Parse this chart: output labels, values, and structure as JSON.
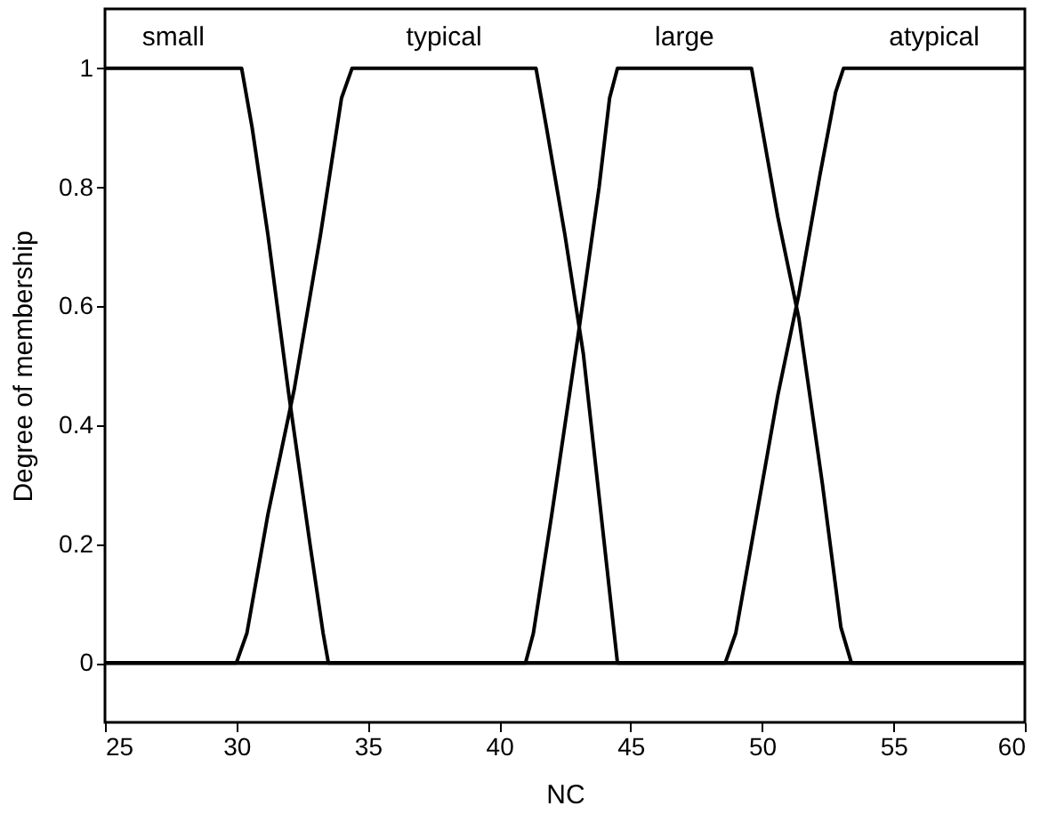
{
  "chart_data": {
    "type": "line",
    "xlabel": "NC",
    "ylabel": "Degree of membership",
    "xlim": [
      25,
      60
    ],
    "ylim": [
      -0.1,
      1.1
    ],
    "xticks": [
      25,
      30,
      35,
      40,
      45,
      50,
      55,
      60
    ],
    "yticks": [
      0,
      0.2,
      0.4,
      0.6,
      0.8,
      1
    ],
    "grid": false,
    "marker": "none",
    "line_style": "solid",
    "series": [
      {
        "name": "small",
        "color": "#000000",
        "x": [
          25,
          30.2,
          30.6,
          31.2,
          32,
          32.8,
          33.3,
          33.5,
          60
        ],
        "values": [
          1,
          1,
          0.9,
          0.72,
          0.45,
          0.2,
          0.05,
          0,
          0
        ]
      },
      {
        "name": "typical",
        "color": "#000000",
        "x": [
          25,
          30,
          30.4,
          31.2,
          32.2,
          33.2,
          34,
          34.4,
          41.4,
          41.8,
          42.5,
          43.2,
          44,
          44.5,
          60
        ],
        "values": [
          0,
          0,
          0.05,
          0.25,
          0.46,
          0.72,
          0.95,
          1,
          1,
          0.9,
          0.72,
          0.52,
          0.2,
          0,
          0
        ]
      },
      {
        "name": "large",
        "color": "#000000",
        "x": [
          25,
          41,
          41.3,
          42,
          43,
          43.8,
          44.2,
          44.5,
          49.6,
          50,
          50.6,
          51.4,
          52.3,
          53,
          53.4,
          60
        ],
        "values": [
          0,
          0,
          0.05,
          0.25,
          0.55,
          0.8,
          0.95,
          1,
          1,
          0.9,
          0.75,
          0.58,
          0.3,
          0.06,
          0,
          0
        ]
      },
      {
        "name": "atypical",
        "color": "#000000",
        "x": [
          25,
          48.6,
          49,
          49.8,
          50.6,
          51.4,
          52.2,
          52.8,
          53.1,
          60
        ],
        "values": [
          0,
          0,
          0.05,
          0.25,
          0.45,
          0.62,
          0.82,
          0.96,
          1,
          1
        ]
      }
    ]
  }
}
